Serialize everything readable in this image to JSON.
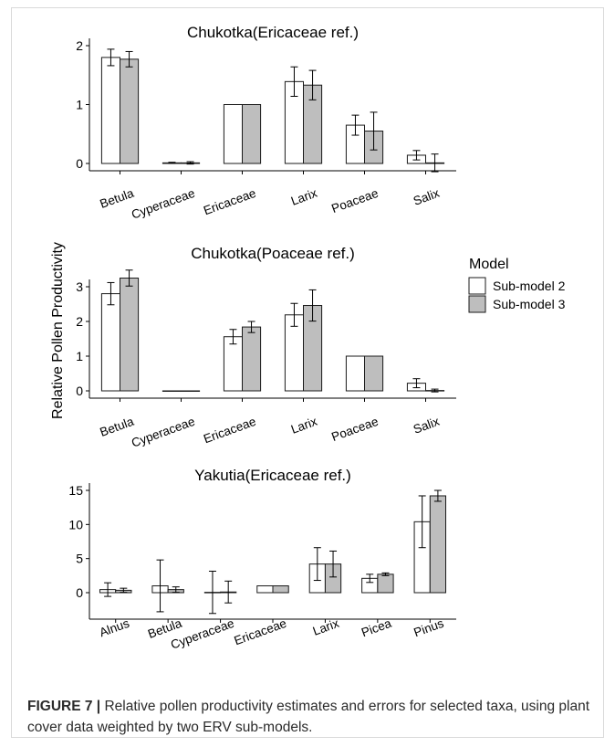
{
  "figure": {
    "ylabel": "Relative Pollen Productivity",
    "legend_title": "Model",
    "caption_label": "FIGURE 7 |",
    "caption_text": " Relative pollen productivity estimates and errors for selected taxa, using plant cover data weighted by two ERV sub-models.",
    "colors": {
      "sub_model_2": "#ffffff",
      "sub_model_3": "#bebebe",
      "outline": "#1a1a1a"
    }
  },
  "chart_data": [
    {
      "type": "bar",
      "title": "Chukotka(Ericaceae ref.)",
      "xlabel": "",
      "ylabel": "Relative Pollen Productivity",
      "categories": [
        "Betula",
        "Cyperaceae",
        "Ericaceae",
        "Larix",
        "Poaceae",
        "Salix"
      ],
      "ylim": [
        0,
        2
      ],
      "yticks": [
        "0",
        "1",
        "2"
      ],
      "series": [
        {
          "name": "Sub-model 2",
          "values": [
            1.8,
            0.01,
            1.0,
            1.39,
            0.65,
            0.14
          ],
          "errors": [
            0.14,
            0.01,
            0,
            0.25,
            0.17,
            0.08
          ]
        },
        {
          "name": "Sub-model 3",
          "values": [
            1.77,
            0.01,
            1.0,
            1.33,
            0.55,
            0.01
          ],
          "errors": [
            0.13,
            0.02,
            0,
            0.25,
            0.32,
            0.15
          ]
        }
      ]
    },
    {
      "type": "bar",
      "title": "Chukotka(Poaceae ref.)",
      "xlabel": "",
      "ylabel": "Relative Pollen Productivity",
      "categories": [
        "Betula",
        "Cyperaceae",
        "Ericaceae",
        "Larix",
        "Poaceae",
        "Salix"
      ],
      "ylim": [
        0,
        3
      ],
      "yticks": [
        "0",
        "1",
        "2",
        "3"
      ],
      "series": [
        {
          "name": "Sub-model 2",
          "values": [
            2.8,
            0.0,
            1.56,
            2.19,
            1.0,
            0.22
          ],
          "errors": [
            0.32,
            0,
            0.21,
            0.33,
            0,
            0.13
          ]
        },
        {
          "name": "Sub-model 3",
          "values": [
            3.25,
            0.0,
            1.84,
            2.46,
            1.0,
            0.01
          ],
          "errors": [
            0.23,
            0,
            0.16,
            0.45,
            0,
            0.04
          ]
        }
      ]
    },
    {
      "type": "bar",
      "title": "Yakutia(Ericaceae ref.)",
      "xlabel": "",
      "ylabel": "Relative Pollen Productivity",
      "categories": [
        "Alnus",
        "Betula",
        "Cyperaceae",
        "Ericaceae",
        "Larix",
        "Picea",
        "Pinus"
      ],
      "ylim": [
        0,
        15
      ],
      "yticks": [
        "0",
        "5",
        "10",
        "15"
      ],
      "series": [
        {
          "name": "Sub-model 2",
          "values": [
            0.45,
            1.0,
            0.05,
            1.0,
            4.2,
            2.1,
            10.4
          ],
          "errors": [
            1.0,
            3.8,
            3.1,
            0,
            2.4,
            0.6,
            3.8
          ]
        },
        {
          "name": "Sub-model 3",
          "values": [
            0.35,
            0.45,
            0.1,
            1.0,
            4.2,
            2.7,
            14.2
          ],
          "errors": [
            0.3,
            0.4,
            1.6,
            0,
            1.9,
            0.2,
            0.8
          ]
        }
      ]
    }
  ]
}
